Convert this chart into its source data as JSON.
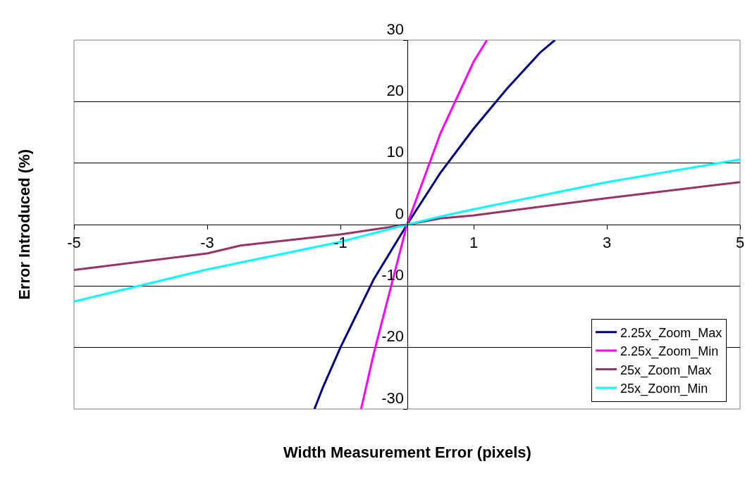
{
  "chart_data": {
    "type": "line",
    "xlabel": "Width Measurement Error (pixels)",
    "ylabel": "Error Introduced (%)",
    "xlim": [
      -5,
      5
    ],
    "xticks": [
      -5,
      -3,
      -1,
      1,
      3,
      5
    ],
    "ylim": [
      -30,
      30
    ],
    "yticks": [
      -30,
      -20,
      -10,
      0,
      10,
      20,
      30
    ],
    "grid": "y",
    "legend": "bottom right",
    "marker": "none",
    "line_style": "solid",
    "series": [
      {
        "name": "2.25x_Zoom_Max",
        "color": "#000080",
        "x": [
          -1.39,
          -1.26,
          -1,
          -0.5,
          0,
          0.5,
          1,
          1.5,
          2,
          2.22
        ],
        "values": [
          -30,
          -26.4,
          -20,
          -8.9,
          0,
          8.4,
          15.6,
          22.1,
          28,
          30
        ]
      },
      {
        "name": "2.25x_Zoom_Min",
        "color": "#ff00ff",
        "x": [
          -0.69,
          -0.5,
          0,
          0.5,
          1,
          1.2
        ],
        "values": [
          -30,
          -21,
          0,
          14.8,
          26.5,
          30
        ]
      },
      {
        "name": "25x_Zoom_Max",
        "color": "#993366",
        "x": [
          -5,
          -3,
          -2.5,
          -1,
          0,
          0.5,
          1,
          3,
          5
        ],
        "values": [
          -7.4,
          -4.7,
          -3.4,
          -1.6,
          0,
          1,
          1.5,
          4.3,
          6.9
        ]
      },
      {
        "name": "25x_Zoom_Min",
        "color": "#00ffff",
        "x": [
          -5,
          -3,
          -1,
          0,
          0.5,
          1,
          3,
          5
        ],
        "values": [
          -12.5,
          -7.3,
          -2.8,
          0,
          1.3,
          2.5,
          6.9,
          10.6
        ]
      }
    ]
  }
}
